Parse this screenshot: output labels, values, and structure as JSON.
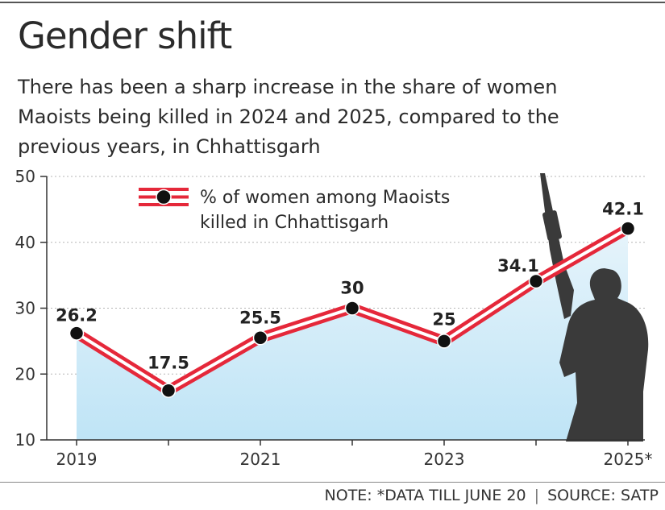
{
  "title": "Gender shift",
  "subtitle": "There has been a sharp increase in the share of women Maoists being killed in 2024 and 2025, compared to the previous years, in Chhattisgarh",
  "footer": {
    "note": "NOTE: *DATA TILL JUNE 20",
    "separator": "|",
    "source": "SOURCE: SATP"
  },
  "colors": {
    "line": "#e5283a",
    "area": "#bfe4f6",
    "marker": "#111111",
    "silhouette": "#3a3a3a"
  },
  "chart_data": {
    "type": "area",
    "title": "Gender shift",
    "x": [
      2019,
      2020,
      2021,
      2022,
      2023,
      2024,
      2025
    ],
    "x_tick_labels": [
      "2019",
      "2021",
      "2023",
      "2025*"
    ],
    "x_tick_values": [
      2019,
      2021,
      2023,
      2025
    ],
    "y_ticks": [
      10,
      20,
      30,
      40,
      50
    ],
    "ylim": [
      10,
      50
    ],
    "grid": true,
    "series": [
      {
        "name": "% of women among Maoists killed in Chhattisgarh",
        "values": [
          26.2,
          17.5,
          25.5,
          30,
          25,
          34.1,
          42.1
        ],
        "labels": [
          "26.2",
          "17.5",
          "25.5",
          "30",
          "25",
          "34.1",
          "42.1"
        ]
      }
    ],
    "legend": {
      "line1": "% of women among Maoists",
      "line2": "killed in Chhattisgarh",
      "placement": "top-left"
    }
  }
}
